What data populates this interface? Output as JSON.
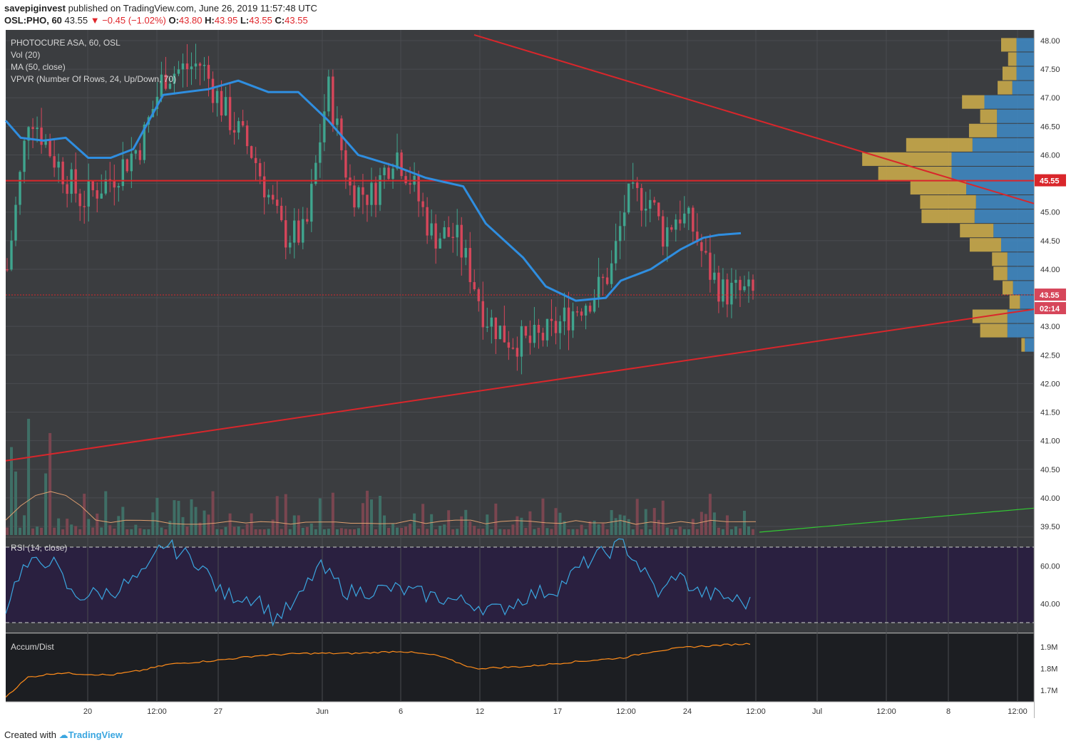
{
  "header": {
    "publisher": "savepiginvest",
    "published_text": "published on TradingView.com, June 26, 2019 11:57:48 UTC",
    "symbol_line": "OSL:PHO, 60",
    "last": "43.55",
    "change_arrow": "▼",
    "change": "−0.45 (−1.02%)",
    "open_label": "O:",
    "open": "43.80",
    "high_label": "H:",
    "high": "43.95",
    "low_label": "L:",
    "low": "43.55",
    "close_label": "C:",
    "close": "43.55"
  },
  "legend": {
    "name": "PHOTOCURE ASA, 60, OSL",
    "vol": "Vol (20)",
    "ma": "MA (50, close)",
    "vpvr": "VPVR (Number Of Rows, 24, Up/Down, 70)"
  },
  "rsi_label": "RSI (14, close)",
  "ad_label": "Accum/Dist",
  "footer": {
    "created_with": "Created with",
    "brand": "TradingView"
  },
  "colors": {
    "background": "#3b3d40",
    "up": "#3fa58e",
    "down": "#d6465a",
    "ma": "#2f8ee0",
    "trendline": "#d9262b",
    "green_line": "#32c832",
    "rsi": "#3aa6e0",
    "rsi_bg": "#2a2040",
    "ad": "#ff8c1a",
    "vpvr_up": "#3f86c0",
    "vpvr_down": "#c9a94a"
  },
  "chart_data": {
    "type": "candlestick",
    "price_axis": [
      "48.00",
      "47.50",
      "47.00",
      "46.50",
      "46.00",
      "45.50",
      "45.00",
      "44.50",
      "44.00",
      "43.50",
      "43.00",
      "42.50",
      "42.00",
      "41.50",
      "41.00",
      "40.50",
      "40.00",
      "39.50"
    ],
    "ylim": [
      39.4,
      48.1
    ],
    "x_ticks": [
      "20",
      "12:00",
      "27",
      "Jun",
      "6",
      "12",
      "17",
      "12:00",
      "24",
      "12:00",
      "Jul",
      "12:00",
      "8",
      "12:00"
    ],
    "price_labels": {
      "level_line": "45.55",
      "last_price": "43.55",
      "countdown": "02:14"
    },
    "horizontal_level": 45.55,
    "rsi_axis": [
      "60.00",
      "40.00"
    ],
    "ad_axis": [
      "1.9M",
      "1.8M",
      "1.7M"
    ],
    "ma_path": [
      [
        0,
        46.6
      ],
      [
        0.02,
        46.3
      ],
      [
        0.05,
        46.25
      ],
      [
        0.08,
        46.3
      ],
      [
        0.11,
        45.95
      ],
      [
        0.14,
        45.95
      ],
      [
        0.17,
        46.1
      ],
      [
        0.21,
        47.05
      ],
      [
        0.27,
        47.15
      ],
      [
        0.31,
        47.3
      ],
      [
        0.35,
        47.1
      ],
      [
        0.39,
        47.1
      ],
      [
        0.43,
        46.6
      ],
      [
        0.47,
        46.0
      ],
      [
        0.52,
        45.8
      ],
      [
        0.56,
        45.6
      ],
      [
        0.61,
        45.45
      ],
      [
        0.64,
        44.8
      ],
      [
        0.69,
        44.2
      ],
      [
        0.72,
        43.7
      ],
      [
        0.76,
        43.45
      ],
      [
        0.8,
        43.5
      ],
      [
        0.82,
        43.8
      ],
      [
        0.86,
        44.0
      ],
      [
        0.9,
        44.35
      ],
      [
        0.93,
        44.55
      ],
      [
        0.95,
        44.6
      ],
      [
        0.98,
        44.63
      ]
    ],
    "ad_path": [
      [
        0,
        1.67
      ],
      [
        0.03,
        1.76
      ],
      [
        0.07,
        1.78
      ],
      [
        0.14,
        1.77
      ],
      [
        0.18,
        1.79
      ],
      [
        0.22,
        1.82
      ],
      [
        0.29,
        1.84
      ],
      [
        0.34,
        1.86
      ],
      [
        0.4,
        1.87
      ],
      [
        0.47,
        1.87
      ],
      [
        0.53,
        1.88
      ],
      [
        0.58,
        1.86
      ],
      [
        0.63,
        1.8
      ],
      [
        0.7,
        1.81
      ],
      [
        0.76,
        1.83
      ],
      [
        0.83,
        1.85
      ],
      [
        0.87,
        1.88
      ],
      [
        0.92,
        1.9
      ],
      [
        0.97,
        1.91
      ],
      [
        1.0,
        1.915
      ]
    ],
    "vpvr_rows": [
      {
        "price": 47.92,
        "up": 0.25,
        "down": 0.22
      },
      {
        "price": 47.67,
        "up": 0.25,
        "down": 0.12
      },
      {
        "price": 47.42,
        "up": 0.25,
        "down": 0.2
      },
      {
        "price": 47.17,
        "up": 0.31,
        "down": 0.21
      },
      {
        "price": 46.92,
        "up": 0.71,
        "down": 0.32
      },
      {
        "price": 46.67,
        "up": 0.53,
        "down": 0.24
      },
      {
        "price": 46.42,
        "up": 0.53,
        "down": 0.4
      },
      {
        "price": 46.17,
        "up": 0.88,
        "down": 0.95
      },
      {
        "price": 45.92,
        "up": 1.18,
        "down": 1.28
      },
      {
        "price": 45.67,
        "up": 1.18,
        "down": 1.05
      },
      {
        "price": 45.42,
        "up": 0.97,
        "down": 0.8
      },
      {
        "price": 45.17,
        "up": 0.83,
        "down": 0.8
      },
      {
        "price": 44.92,
        "up": 0.85,
        "down": 0.76
      },
      {
        "price": 44.67,
        "up": 0.58,
        "down": 0.48
      },
      {
        "price": 44.42,
        "up": 0.47,
        "down": 0.45
      },
      {
        "price": 44.17,
        "up": 0.38,
        "down": 0.22
      },
      {
        "price": 43.92,
        "up": 0.38,
        "down": 0.2
      },
      {
        "price": 43.67,
        "up": 0.3,
        "down": 0.15
      },
      {
        "price": 43.42,
        "up": 0.2,
        "down": 0.15
      },
      {
        "price": 43.17,
        "up": 0.38,
        "down": 0.5
      },
      {
        "price": 42.92,
        "up": 0.38,
        "down": 0.39
      },
      {
        "price": 42.67,
        "up": 0.13,
        "down": 0.05
      }
    ]
  }
}
